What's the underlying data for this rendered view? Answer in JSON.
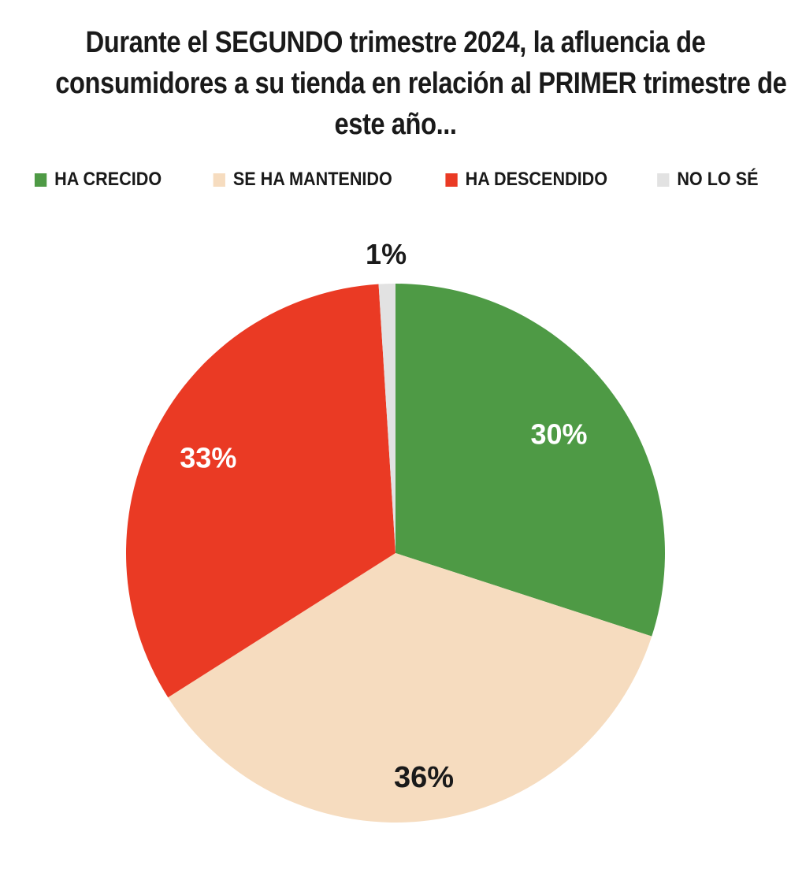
{
  "chart_data": {
    "type": "pie",
    "title_lines": [
      "Durante el SEGUNDO trimestre 2024, la afluencia de",
      "consumidores a su tienda en relación al  PRIMER  trimestre de",
      "este año..."
    ],
    "legend_position": "top",
    "categories": [
      "HA CRECIDO",
      "SE HA MANTENIDO",
      "HA DESCENDIDO",
      "NO LO SÉ"
    ],
    "values": [
      30,
      36,
      33,
      1
    ],
    "data_labels": [
      "30%",
      "36%",
      "33%",
      "1%"
    ],
    "colors": [
      "#4e9a45",
      "#f6dcbf",
      "#ea3a24",
      "#e2e2e2"
    ],
    "label_colors": [
      "#ffffff",
      "#1a1a1a",
      "#ffffff",
      "#1a1a1a"
    ]
  }
}
